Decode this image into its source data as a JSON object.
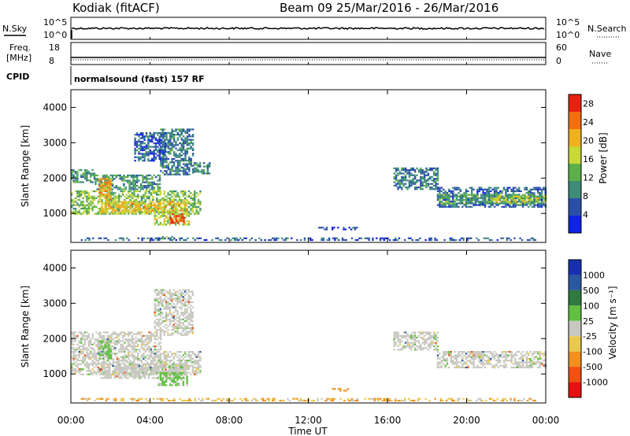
{
  "header": {
    "station": "Kodiak (fitACF)",
    "beam_date": "Beam 09  25/Mar/2016 - 26/Mar/2016"
  },
  "top_panels": {
    "nsky_label": "N.Sky",
    "nsky_ticks": [
      "10^5",
      "10^0"
    ],
    "nsearch_label": "N.Search",
    "nsearch_ticks": [
      "10^5",
      "10^0"
    ],
    "freq_label_1": "Freq.",
    "freq_label_2": "[MHz]",
    "freq_ticks": [
      "18",
      "8"
    ],
    "nave_label": "Nave",
    "nave_ticks": [
      "60",
      "0"
    ],
    "cpid_label": "CPID",
    "cpid_text": "normalsound (fast) 157 RF"
  },
  "colors": {
    "power_scale": [
      "#0f22e6",
      "#2a4fa8",
      "#3c8c78",
      "#5cb04a",
      "#c8d838",
      "#f0b020",
      "#f07010",
      "#e82010"
    ],
    "velocity_scale": [
      "#1830b0",
      "#2a58a0",
      "#2f7a40",
      "#60c040",
      "#c8c8c0",
      "#e8c850",
      "#f09020",
      "#f05010",
      "#e81010"
    ]
  },
  "chart_data": [
    {
      "type": "heatmap",
      "name": "power",
      "ylabel": "Slant Range [km]",
      "xlabel": "",
      "ylim": [
        180,
        4500
      ],
      "yticks": [
        "1000",
        "2000",
        "3000",
        "4000"
      ],
      "xlim_hours": [
        0,
        24
      ],
      "colorbar": {
        "label": "Power [dB]",
        "ticks": [
          "4",
          "8",
          "12",
          "16",
          "20",
          "24",
          "28"
        ],
        "range": [
          0,
          30
        ]
      },
      "regions": [
        {
          "t0": 0.0,
          "t1": 6.5,
          "r0": 1000,
          "r1": 1650,
          "level": 14
        },
        {
          "t0": 1.5,
          "t1": 5.8,
          "r0": 1050,
          "r1": 1350,
          "level": 19
        },
        {
          "t0": 0.0,
          "t1": 1.2,
          "r0": 1900,
          "r1": 2250,
          "level": 9
        },
        {
          "t0": 1.2,
          "t1": 4.5,
          "r0": 1700,
          "r1": 2100,
          "level": 10
        },
        {
          "t0": 1.4,
          "t1": 2.0,
          "r0": 1400,
          "r1": 2000,
          "level": 22
        },
        {
          "t0": 4.5,
          "t1": 6.2,
          "r0": 2100,
          "r1": 3400,
          "level": 8
        },
        {
          "t0": 3.2,
          "t1": 4.8,
          "r0": 2500,
          "r1": 3300,
          "level": 6
        },
        {
          "t0": 4.2,
          "t1": 6.0,
          "r0": 700,
          "r1": 1050,
          "level": 16
        },
        {
          "t0": 5.0,
          "t1": 5.7,
          "r0": 750,
          "r1": 1000,
          "level": 27
        },
        {
          "t0": 4.5,
          "t1": 5.3,
          "r0": 300,
          "r1": 360,
          "level": 12
        },
        {
          "t0": 6.2,
          "t1": 7.0,
          "r0": 2150,
          "r1": 2450,
          "level": 9
        },
        {
          "t0": 12.5,
          "t1": 14.5,
          "r0": 560,
          "r1": 620,
          "level": 5
        },
        {
          "t0": 16.3,
          "t1": 18.5,
          "r0": 1700,
          "r1": 2300,
          "level": 8
        },
        {
          "t0": 18.5,
          "t1": 24.0,
          "r0": 1200,
          "r1": 1750,
          "level": 7
        },
        {
          "t0": 18.5,
          "t1": 24.0,
          "r0": 1300,
          "r1": 1550,
          "level": 12
        },
        {
          "t0": 21.0,
          "t1": 24.0,
          "r0": 1350,
          "r1": 1500,
          "level": 17
        },
        {
          "t0": 0.5,
          "t1": 23.5,
          "r0": 240,
          "r1": 320,
          "level": 6
        }
      ]
    },
    {
      "type": "heatmap",
      "name": "velocity",
      "ylabel": "Slant Range [km]",
      "xlabel": "Time UT",
      "ylim": [
        180,
        4500
      ],
      "yticks": [
        "1000",
        "2000",
        "3000",
        "4000"
      ],
      "xticks": [
        "00:00",
        "04:00",
        "08:00",
        "12:00",
        "16:00",
        "20:00",
        "00:00"
      ],
      "xlim_hours": [
        0,
        24
      ],
      "colorbar": {
        "label": "Velocity [m s⁻¹]",
        "ticks": [
          "1000",
          "500",
          "100",
          "25",
          "-25",
          "-100",
          "-500",
          "-1000"
        ]
      },
      "regions": [
        {
          "t0": 0.0,
          "t1": 6.5,
          "r0": 1000,
          "r1": 1650,
          "class": 4
        },
        {
          "t0": 1.5,
          "t1": 5.8,
          "r0": 900,
          "r1": 1300,
          "class": 4
        },
        {
          "t0": 0.0,
          "t1": 4.5,
          "r0": 1700,
          "r1": 2200,
          "class": 4
        },
        {
          "t0": 4.2,
          "t1": 6.2,
          "r0": 2100,
          "r1": 3400,
          "class": 4
        },
        {
          "t0": 1.4,
          "t1": 2.0,
          "r0": 1450,
          "r1": 1950,
          "class": 3
        },
        {
          "t0": 4.3,
          "t1": 5.9,
          "r0": 700,
          "r1": 1050,
          "class": 3
        },
        {
          "t0": 16.3,
          "t1": 18.5,
          "r0": 1700,
          "r1": 2200,
          "class": 4
        },
        {
          "t0": 18.5,
          "t1": 24.0,
          "r0": 1200,
          "r1": 1650,
          "class": 4
        },
        {
          "t0": 13.2,
          "t1": 14.4,
          "r0": 520,
          "r1": 600,
          "class": 6
        },
        {
          "t0": 0.5,
          "t1": 23.5,
          "r0": 240,
          "r1": 320,
          "class": 5
        }
      ]
    }
  ]
}
